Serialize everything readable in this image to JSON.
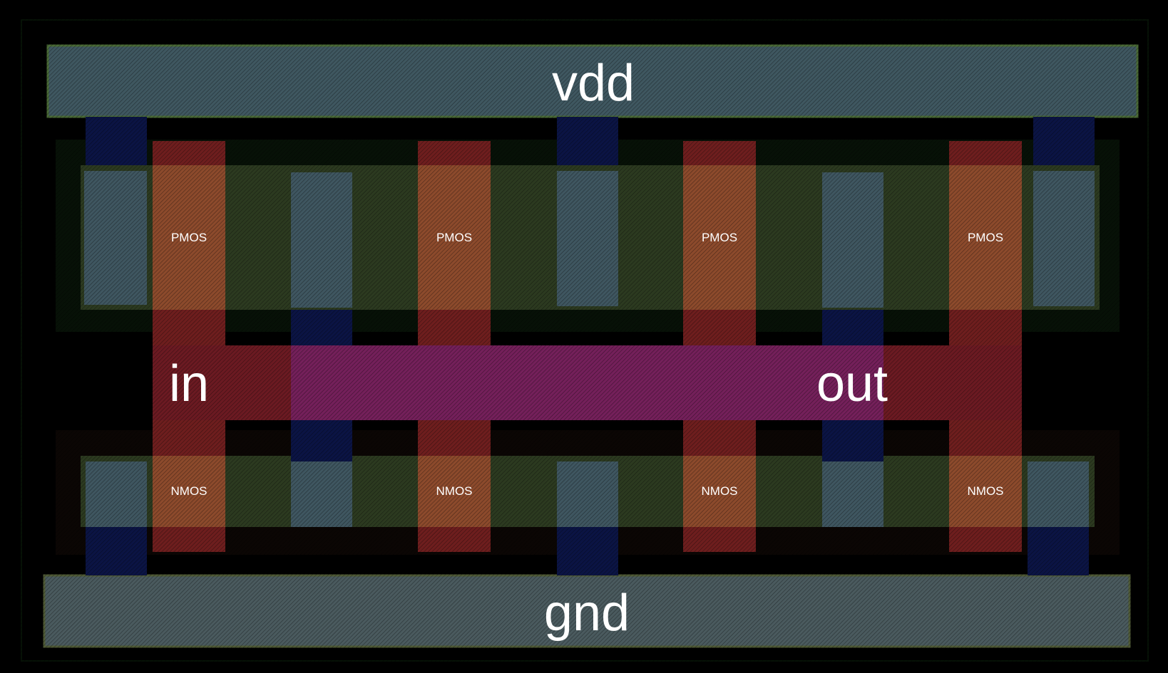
{
  "colors": {
    "background": "#000000",
    "metal_rail": "#3f5760",
    "metal_rail_edge": "#4a6a36",
    "diffusion": "#2c3a20",
    "well": "#061006",
    "contact_column": "#3f5660",
    "via": "#0b1444",
    "poly": "#7e2b24",
    "poly_in_diffusion": "#9a5030",
    "poly_strip": "#6b1a22",
    "metal_overlap": "#74205a",
    "label_text": "#ffffff"
  },
  "labels": {
    "vdd": "vdd",
    "gnd": "gnd",
    "in": "in",
    "out": "out"
  },
  "transistors": {
    "pmos": [
      "PMOS",
      "PMOS",
      "PMOS",
      "PMOS"
    ],
    "nmos": [
      "NMOS",
      "NMOS",
      "NMOS",
      "NMOS"
    ]
  }
}
